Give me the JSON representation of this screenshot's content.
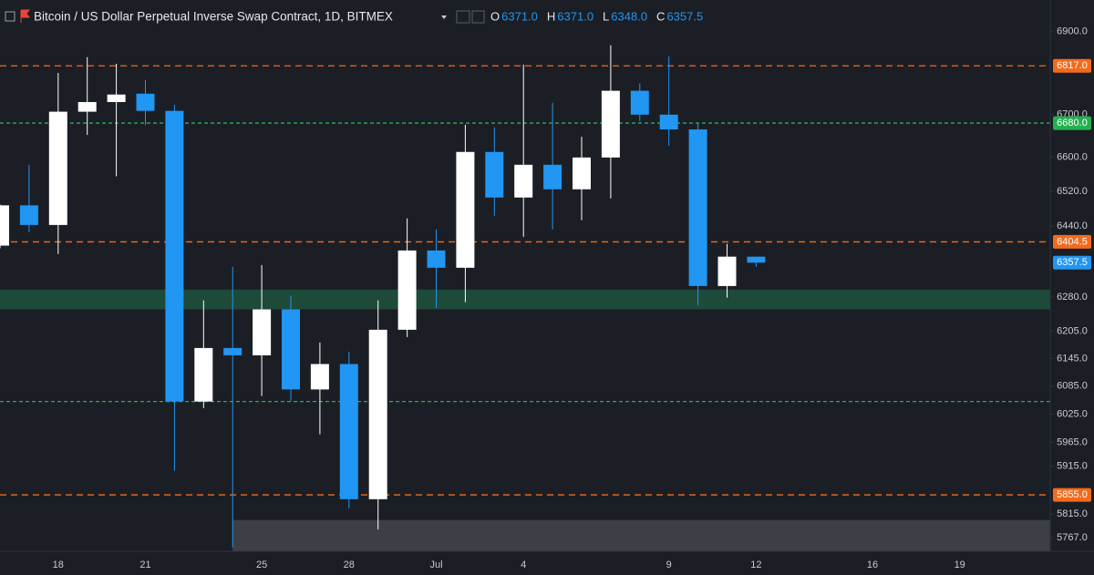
{
  "chart_data": {
    "type": "candlestick",
    "title": "Bitcoin / US Dollar Perpetual Inverse Swap Contract, 1D, BITMEX",
    "legend_ohlc": [
      {
        "label": "O",
        "value": "6371.0"
      },
      {
        "label": "H",
        "value": "6371.0"
      },
      {
        "label": "L",
        "value": "6348.0"
      },
      {
        "label": "C",
        "value": "6357.5"
      }
    ],
    "categories": [
      null,
      null,
      "18",
      null,
      null,
      "21",
      null,
      null,
      null,
      "25",
      null,
      null,
      "28",
      null,
      null,
      "Jul",
      null,
      null,
      "4",
      null,
      null,
      null,
      null,
      "9",
      null,
      null,
      "12",
      null,
      null,
      null,
      "16",
      null,
      null,
      "19",
      null
    ],
    "open": [
      6396,
      6488,
      6443,
      6707,
      6730,
      6750,
      6709,
      6052,
      6168,
      6152,
      6253,
      6078,
      6133,
      5846,
      6208,
      6385,
      6346,
      6612,
      6506,
      6582,
      6525,
      6599,
      6757,
      6700,
      6665,
      6305,
      6371,
      null,
      null,
      null,
      null,
      null,
      null,
      null,
      null
    ],
    "high": [
      6490,
      6582,
      6800,
      6838,
      6822,
      6783,
      6724,
      6273,
      6348,
      6352,
      6283,
      6180,
      6160,
      6273,
      6458,
      6433,
      6676,
      6670,
      6820,
      6728,
      6648,
      6867,
      6775,
      6840,
      6681,
      6400,
      6371,
      null,
      null,
      null,
      null,
      null,
      null,
      null,
      null
    ],
    "low": [
      6390,
      6427,
      6377,
      6652,
      6555,
      6675,
      5905,
      6038,
      5747,
      6064,
      6053,
      5982,
      5827,
      5784,
      6192,
      6256,
      6269,
      6464,
      6416,
      6433,
      6454,
      6504,
      6685,
      6627,
      6262,
      6279,
      6348,
      null,
      null,
      null,
      null,
      null,
      null,
      null,
      null
    ],
    "close": [
      6488,
      6443,
      6707,
      6730,
      6748,
      6709,
      6052,
      6168,
      6152,
      6253,
      6078,
      6133,
      5846,
      6208,
      6385,
      6346,
      6612,
      6506,
      6582,
      6525,
      6599,
      6757,
      6700,
      6665,
      6305,
      6371,
      6357.5,
      null,
      null,
      null,
      null,
      null,
      null,
      null,
      null
    ],
    "up_color": "#ffffff",
    "down_color": "#2196f3",
    "log_scale": true,
    "ylim": [
      5739,
      6978
    ],
    "yticks": [
      {
        "value": 6900,
        "label": "6900.0"
      },
      {
        "value": 6700,
        "label": "6700.0"
      },
      {
        "value": 6600,
        "label": "6600.0"
      },
      {
        "value": 6520,
        "label": "6520.0"
      },
      {
        "value": 6440,
        "label": "6440.0"
      },
      {
        "value": 6280,
        "label": "6280.0"
      },
      {
        "value": 6205,
        "label": "6205.0"
      },
      {
        "value": 6145,
        "label": "6145.0"
      },
      {
        "value": 6085,
        "label": "6085.0"
      },
      {
        "value": 6025,
        "label": "6025.0"
      },
      {
        "value": 5965,
        "label": "5965.0"
      },
      {
        "value": 5915,
        "label": "5915.0"
      },
      {
        "value": 5815,
        "label": "5815.0"
      },
      {
        "value": 5767,
        "label": "5767.0"
      }
    ],
    "price_lines": [
      {
        "value": 6817,
        "label": "6817.0",
        "color": "#f26b1d"
      },
      {
        "value": 6680,
        "label": "6680.0",
        "color": "#26b050"
      },
      {
        "value": 6404.5,
        "label": "6404.5",
        "color": "#f26b1d"
      },
      {
        "value": 6052,
        "color": "#26b050"
      },
      {
        "value": 5855,
        "label": "5855.0",
        "color": "#f26b1d"
      }
    ],
    "last_price": {
      "value": 6357.5,
      "label": "6357.5",
      "color": "#2196f3"
    },
    "zones": [
      {
        "range": [
          6253,
          6297
        ],
        "color": "#1e4a3a",
        "start": 0
      },
      {
        "range": [
          5739,
          5803
        ],
        "color": "#3c3f46",
        "start": 8
      }
    ]
  }
}
